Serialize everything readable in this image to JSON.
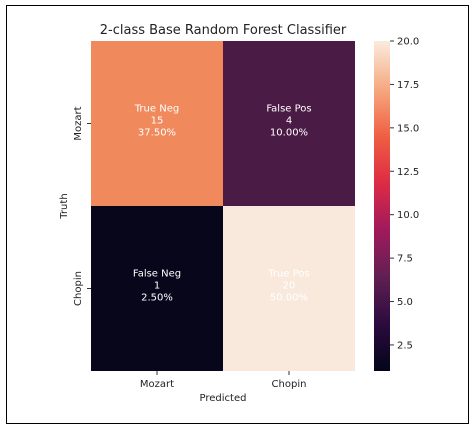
{
  "chart_data": {
    "type": "heatmap",
    "title": "2-class Base Random Forest Classifier",
    "xlabel": "Predicted",
    "ylabel": "Truth",
    "x_categories": [
      "Mozart",
      "Chopin"
    ],
    "y_categories": [
      "Mozart",
      "Chopin"
    ],
    "cells": [
      [
        {
          "label": "True Neg",
          "count": 15,
          "percent": "37.50%"
        },
        {
          "label": "False Pos",
          "count": 4,
          "percent": "10.00%"
        }
      ],
      [
        {
          "label": "False Neg",
          "count": 1,
          "percent": "2.50%"
        },
        {
          "label": "True Pos",
          "count": 20,
          "percent": "50.00%"
        }
      ]
    ],
    "cell_lines": [
      [
        "True Neg\n15\n37.50%",
        "False Pos\n4\n10.00%"
      ],
      [
        "False Neg\n1\n2.50%",
        "True Pos\n20\n50.00%"
      ]
    ],
    "colorbar": {
      "colormap": "rocket",
      "vmin": 1,
      "vmax": 20,
      "ticks": [
        2.5,
        5.0,
        7.5,
        10.0,
        12.5,
        15.0,
        17.5,
        20.0
      ],
      "tick_labels": [
        "2.5",
        "5.0",
        "7.5",
        "10.0",
        "12.5",
        "15.0",
        "17.5",
        "20.0"
      ]
    },
    "cell_colors": [
      [
        "#f08a5d",
        "#4a1b45"
      ],
      [
        "#07061a",
        "#f9e9dc"
      ]
    ],
    "colormap_stops": [
      "#03051a",
      "#2b0b3f",
      "#611f53",
      "#a11a5b",
      "#dd2c45",
      "#f06043",
      "#f6aa82",
      "#faebdd"
    ]
  }
}
